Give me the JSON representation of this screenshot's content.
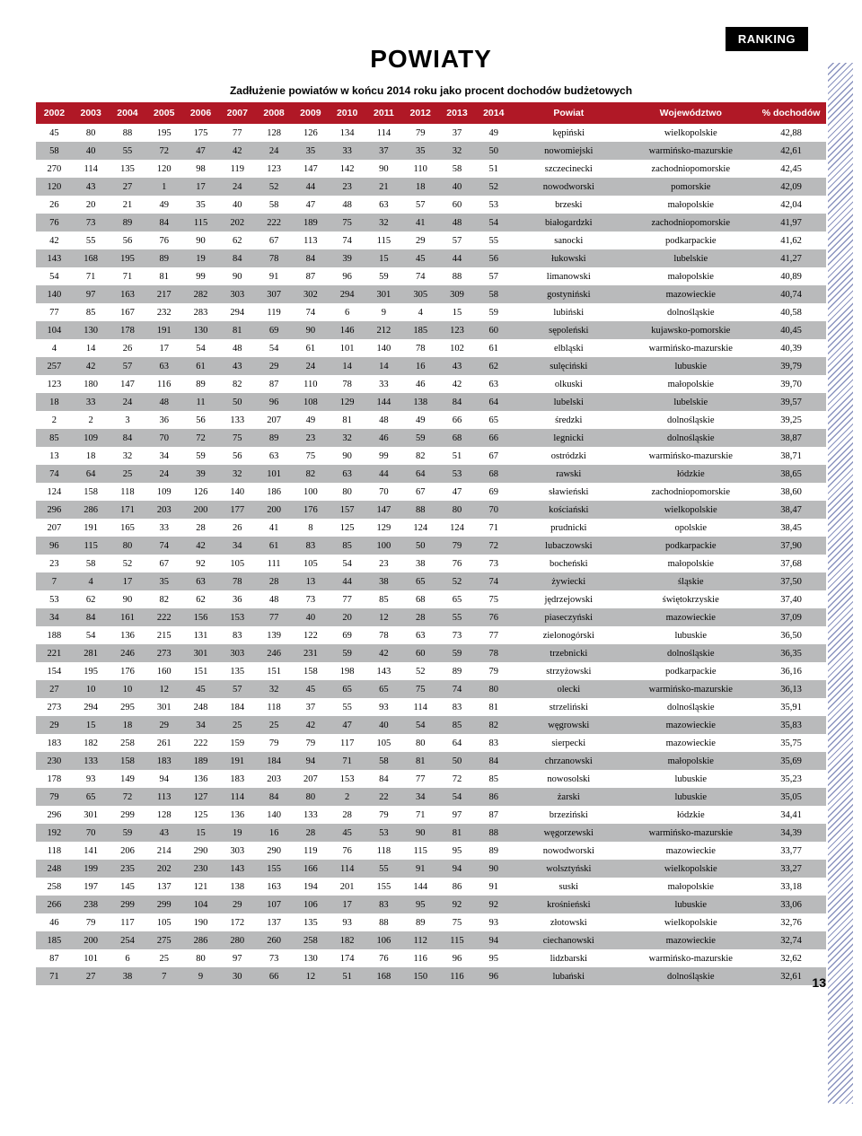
{
  "badge": "RANKING",
  "title": "POWIATY",
  "subtitle": "Zadłużenie powiatów w końcu 2014 roku jako procent dochodów budżetowych",
  "page_number": "13",
  "style": {
    "header_bg": "#b01826",
    "header_fg": "#ffffff",
    "row_shade": "#b9babb",
    "row_plain": "#ffffff",
    "font_size_pt": 10.5,
    "badge_bg": "#000000",
    "badge_fg": "#ffffff",
    "hatch_color": "#2a3a8a"
  },
  "columns": [
    "2002",
    "2003",
    "2004",
    "2005",
    "2006",
    "2007",
    "2008",
    "2009",
    "2010",
    "2011",
    "2012",
    "2013",
    "2014",
    "Powiat",
    "Województwo",
    "% dochodów"
  ],
  "rows": [
    [
      "45",
      "80",
      "88",
      "195",
      "175",
      "77",
      "128",
      "126",
      "134",
      "114",
      "79",
      "37",
      "49",
      "kępiński",
      "wielkopolskie",
      "42,88"
    ],
    [
      "58",
      "40",
      "55",
      "72",
      "47",
      "42",
      "24",
      "35",
      "33",
      "37",
      "35",
      "32",
      "50",
      "nowomiejski",
      "warmińsko-mazurskie",
      "42,61"
    ],
    [
      "270",
      "114",
      "135",
      "120",
      "98",
      "119",
      "123",
      "147",
      "142",
      "90",
      "110",
      "58",
      "51",
      "szczecinecki",
      "zachodniopomorskie",
      "42,45"
    ],
    [
      "120",
      "43",
      "27",
      "1",
      "17",
      "24",
      "52",
      "44",
      "23",
      "21",
      "18",
      "40",
      "52",
      "nowodworski",
      "pomorskie",
      "42,09"
    ],
    [
      "26",
      "20",
      "21",
      "49",
      "35",
      "40",
      "58",
      "47",
      "48",
      "63",
      "57",
      "60",
      "53",
      "brzeski",
      "małopolskie",
      "42,04"
    ],
    [
      "76",
      "73",
      "89",
      "84",
      "115",
      "202",
      "222",
      "189",
      "75",
      "32",
      "41",
      "48",
      "54",
      "białogardzki",
      "zachodniopomorskie",
      "41,97"
    ],
    [
      "42",
      "55",
      "56",
      "76",
      "90",
      "62",
      "67",
      "113",
      "74",
      "115",
      "29",
      "57",
      "55",
      "sanocki",
      "podkarpackie",
      "41,62"
    ],
    [
      "143",
      "168",
      "195",
      "89",
      "19",
      "84",
      "78",
      "84",
      "39",
      "15",
      "45",
      "44",
      "56",
      "łukowski",
      "lubelskie",
      "41,27"
    ],
    [
      "54",
      "71",
      "71",
      "81",
      "99",
      "90",
      "91",
      "87",
      "96",
      "59",
      "74",
      "88",
      "57",
      "limanowski",
      "małopolskie",
      "40,89"
    ],
    [
      "140",
      "97",
      "163",
      "217",
      "282",
      "303",
      "307",
      "302",
      "294",
      "301",
      "305",
      "309",
      "58",
      "gostyniński",
      "mazowieckie",
      "40,74"
    ],
    [
      "77",
      "85",
      "167",
      "232",
      "283",
      "294",
      "119",
      "74",
      "6",
      "9",
      "4",
      "15",
      "59",
      "lubiński",
      "dolnośląskie",
      "40,58"
    ],
    [
      "104",
      "130",
      "178",
      "191",
      "130",
      "81",
      "69",
      "90",
      "146",
      "212",
      "185",
      "123",
      "60",
      "sępoleński",
      "kujawsko-pomorskie",
      "40,45"
    ],
    [
      "4",
      "14",
      "26",
      "17",
      "54",
      "48",
      "54",
      "61",
      "101",
      "140",
      "78",
      "102",
      "61",
      "elbląski",
      "warmińsko-mazurskie",
      "40,39"
    ],
    [
      "257",
      "42",
      "57",
      "63",
      "61",
      "43",
      "29",
      "24",
      "14",
      "14",
      "16",
      "43",
      "62",
      "sulęciński",
      "lubuskie",
      "39,79"
    ],
    [
      "123",
      "180",
      "147",
      "116",
      "89",
      "82",
      "87",
      "110",
      "78",
      "33",
      "46",
      "42",
      "63",
      "olkuski",
      "małopolskie",
      "39,70"
    ],
    [
      "18",
      "33",
      "24",
      "48",
      "11",
      "50",
      "96",
      "108",
      "129",
      "144",
      "138",
      "84",
      "64",
      "lubelski",
      "lubelskie",
      "39,57"
    ],
    [
      "2",
      "2",
      "3",
      "36",
      "56",
      "133",
      "207",
      "49",
      "81",
      "48",
      "49",
      "66",
      "65",
      "średzki",
      "dolnośląskie",
      "39,25"
    ],
    [
      "85",
      "109",
      "84",
      "70",
      "72",
      "75",
      "89",
      "23",
      "32",
      "46",
      "59",
      "68",
      "66",
      "legnicki",
      "dolnośląskie",
      "38,87"
    ],
    [
      "13",
      "18",
      "32",
      "34",
      "59",
      "56",
      "63",
      "75",
      "90",
      "99",
      "82",
      "51",
      "67",
      "ostródzki",
      "warmińsko-mazurskie",
      "38,71"
    ],
    [
      "74",
      "64",
      "25",
      "24",
      "39",
      "32",
      "101",
      "82",
      "63",
      "44",
      "64",
      "53",
      "68",
      "rawski",
      "łódzkie",
      "38,65"
    ],
    [
      "124",
      "158",
      "118",
      "109",
      "126",
      "140",
      "186",
      "100",
      "80",
      "70",
      "67",
      "47",
      "69",
      "sławieński",
      "zachodniopomorskie",
      "38,60"
    ],
    [
      "296",
      "286",
      "171",
      "203",
      "200",
      "177",
      "200",
      "176",
      "157",
      "147",
      "88",
      "80",
      "70",
      "kościański",
      "wielkopolskie",
      "38,47"
    ],
    [
      "207",
      "191",
      "165",
      "33",
      "28",
      "26",
      "41",
      "8",
      "125",
      "129",
      "124",
      "124",
      "71",
      "prudnicki",
      "opolskie",
      "38,45"
    ],
    [
      "96",
      "115",
      "80",
      "74",
      "42",
      "34",
      "61",
      "83",
      "85",
      "100",
      "50",
      "79",
      "72",
      "lubaczowski",
      "podkarpackie",
      "37,90"
    ],
    [
      "23",
      "58",
      "52",
      "67",
      "92",
      "105",
      "111",
      "105",
      "54",
      "23",
      "38",
      "76",
      "73",
      "bocheński",
      "małopolskie",
      "37,68"
    ],
    [
      "7",
      "4",
      "17",
      "35",
      "63",
      "78",
      "28",
      "13",
      "44",
      "38",
      "65",
      "52",
      "74",
      "żywiecki",
      "śląskie",
      "37,50"
    ],
    [
      "53",
      "62",
      "90",
      "82",
      "62",
      "36",
      "48",
      "73",
      "77",
      "85",
      "68",
      "65",
      "75",
      "jędrzejowski",
      "świętokrzyskie",
      "37,40"
    ],
    [
      "34",
      "84",
      "161",
      "222",
      "156",
      "153",
      "77",
      "40",
      "20",
      "12",
      "28",
      "55",
      "76",
      "piaseczyński",
      "mazowieckie",
      "37,09"
    ],
    [
      "188",
      "54",
      "136",
      "215",
      "131",
      "83",
      "139",
      "122",
      "69",
      "78",
      "63",
      "73",
      "77",
      "zielonogórski",
      "lubuskie",
      "36,50"
    ],
    [
      "221",
      "281",
      "246",
      "273",
      "301",
      "303",
      "246",
      "231",
      "59",
      "42",
      "60",
      "59",
      "78",
      "trzebnicki",
      "dolnośląskie",
      "36,35"
    ],
    [
      "154",
      "195",
      "176",
      "160",
      "151",
      "135",
      "151",
      "158",
      "198",
      "143",
      "52",
      "89",
      "79",
      "strzyżowski",
      "podkarpackie",
      "36,16"
    ],
    [
      "27",
      "10",
      "10",
      "12",
      "45",
      "57",
      "32",
      "45",
      "65",
      "65",
      "75",
      "74",
      "80",
      "olecki",
      "warmińsko-mazurskie",
      "36,13"
    ],
    [
      "273",
      "294",
      "295",
      "301",
      "248",
      "184",
      "118",
      "37",
      "55",
      "93",
      "114",
      "83",
      "81",
      "strzeliński",
      "dolnośląskie",
      "35,91"
    ],
    [
      "29",
      "15",
      "18",
      "29",
      "34",
      "25",
      "25",
      "42",
      "47",
      "40",
      "54",
      "85",
      "82",
      "węgrowski",
      "mazowieckie",
      "35,83"
    ],
    [
      "183",
      "182",
      "258",
      "261",
      "222",
      "159",
      "79",
      "79",
      "117",
      "105",
      "80",
      "64",
      "83",
      "sierpecki",
      "mazowieckie",
      "35,75"
    ],
    [
      "230",
      "133",
      "158",
      "183",
      "189",
      "191",
      "184",
      "94",
      "71",
      "58",
      "81",
      "50",
      "84",
      "chrzanowski",
      "małopolskie",
      "35,69"
    ],
    [
      "178",
      "93",
      "149",
      "94",
      "136",
      "183",
      "203",
      "207",
      "153",
      "84",
      "77",
      "72",
      "85",
      "nowosolski",
      "lubuskie",
      "35,23"
    ],
    [
      "79",
      "65",
      "72",
      "113",
      "127",
      "114",
      "84",
      "80",
      "2",
      "22",
      "34",
      "54",
      "86",
      "żarski",
      "lubuskie",
      "35,05"
    ],
    [
      "296",
      "301",
      "299",
      "128",
      "125",
      "136",
      "140",
      "133",
      "28",
      "79",
      "71",
      "97",
      "87",
      "brzeziński",
      "łódzkie",
      "34,41"
    ],
    [
      "192",
      "70",
      "59",
      "43",
      "15",
      "19",
      "16",
      "28",
      "45",
      "53",
      "90",
      "81",
      "88",
      "węgorzewski",
      "warmińsko-mazurskie",
      "34,39"
    ],
    [
      "118",
      "141",
      "206",
      "214",
      "290",
      "303",
      "290",
      "119",
      "76",
      "118",
      "115",
      "95",
      "89",
      "nowodworski",
      "mazowieckie",
      "33,77"
    ],
    [
      "248",
      "199",
      "235",
      "202",
      "230",
      "143",
      "155",
      "166",
      "114",
      "55",
      "91",
      "94",
      "90",
      "wolsztyński",
      "wielkopolskie",
      "33,27"
    ],
    [
      "258",
      "197",
      "145",
      "137",
      "121",
      "138",
      "163",
      "194",
      "201",
      "155",
      "144",
      "86",
      "91",
      "suski",
      "małopolskie",
      "33,18"
    ],
    [
      "266",
      "238",
      "299",
      "299",
      "104",
      "29",
      "107",
      "106",
      "17",
      "83",
      "95",
      "92",
      "92",
      "krośnieński",
      "lubuskie",
      "33,06"
    ],
    [
      "46",
      "79",
      "117",
      "105",
      "190",
      "172",
      "137",
      "135",
      "93",
      "88",
      "89",
      "75",
      "93",
      "złotowski",
      "wielkopolskie",
      "32,76"
    ],
    [
      "185",
      "200",
      "254",
      "275",
      "286",
      "280",
      "260",
      "258",
      "182",
      "106",
      "112",
      "115",
      "94",
      "ciechanowski",
      "mazowieckie",
      "32,74"
    ],
    [
      "87",
      "101",
      "6",
      "25",
      "80",
      "97",
      "73",
      "130",
      "174",
      "76",
      "116",
      "96",
      "95",
      "lidzbarski",
      "warmińsko-mazurskie",
      "32,62"
    ],
    [
      "71",
      "27",
      "38",
      "7",
      "9",
      "30",
      "66",
      "12",
      "51",
      "168",
      "150",
      "116",
      "96",
      "lubański",
      "dolnośląskie",
      "32,61"
    ]
  ]
}
